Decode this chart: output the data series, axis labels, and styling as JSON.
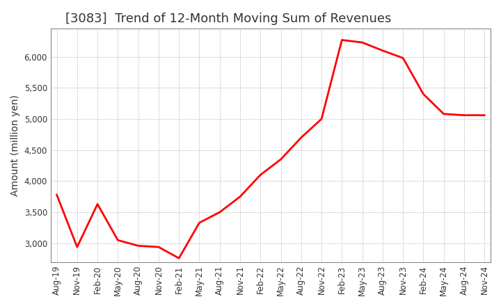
{
  "title": "[3083]  Trend of 12-Month Moving Sum of Revenues",
  "ylabel": "Amount (million yen)",
  "line_color": "#ff0000",
  "line_width": 2.0,
  "background_color": "#ffffff",
  "plot_bg_color": "#ffffff",
  "grid_color": "#999999",
  "ylim": [
    2700,
    6450
  ],
  "yticks": [
    3000,
    3500,
    4000,
    4500,
    5000,
    5500,
    6000
  ],
  "values": [
    3780,
    2940,
    3630,
    3050,
    2960,
    2940,
    2760,
    3330,
    3500,
    3750,
    4100,
    4350,
    4700,
    5000,
    6270,
    6230,
    6100,
    5980,
    5400,
    5080,
    5060,
    5060
  ],
  "xtick_labels": [
    "Aug-19",
    "Nov-19",
    "Feb-20",
    "May-20",
    "Aug-20",
    "Nov-20",
    "Feb-21",
    "May-21",
    "Aug-21",
    "Nov-21",
    "Feb-22",
    "May-22",
    "Aug-22",
    "Nov-22",
    "Feb-23",
    "May-23",
    "Aug-23",
    "Nov-23",
    "Feb-24",
    "May-24",
    "Aug-24",
    "Nov-24"
  ],
  "title_fontsize": 13,
  "label_fontsize": 10,
  "tick_fontsize": 8.5,
  "title_color": "#333333"
}
